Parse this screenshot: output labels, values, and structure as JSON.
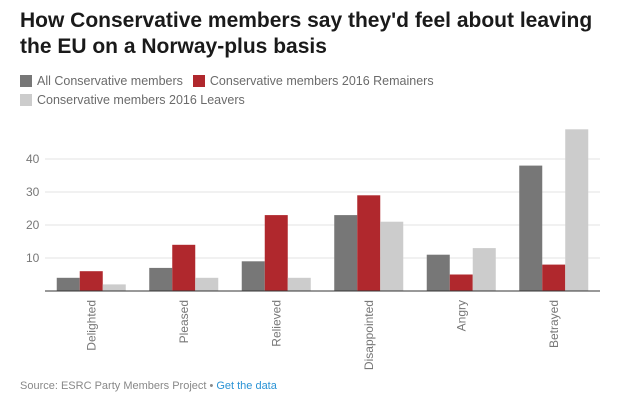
{
  "title": "How Conservative members say they'd feel about leaving the EU on a Norway-plus basis",
  "footer": {
    "source": "Source: ESRC Party Members Project",
    "separator": "•",
    "link": "Get the data"
  },
  "chart_data": {
    "type": "bar",
    "categories": [
      "Delighted",
      "Pleased",
      "Relieved",
      "Disappointed",
      "Angry",
      "Betrayed"
    ],
    "series": [
      {
        "name": "All Conservative members",
        "color": "#777777",
        "values": [
          4,
          7,
          9,
          23,
          11,
          38
        ]
      },
      {
        "name": "Conservative members 2016 Remainers",
        "color": "#b0282d",
        "values": [
          6,
          14,
          23,
          29,
          5,
          8
        ]
      },
      {
        "name": "Conservative members 2016 Leavers",
        "color": "#cccccc",
        "values": [
          2,
          4,
          4,
          21,
          13,
          49
        ]
      }
    ],
    "yticks": [
      10,
      20,
      30,
      40
    ],
    "ylim": [
      0,
      50
    ],
    "grid": true,
    "legend_position": "top-left"
  }
}
